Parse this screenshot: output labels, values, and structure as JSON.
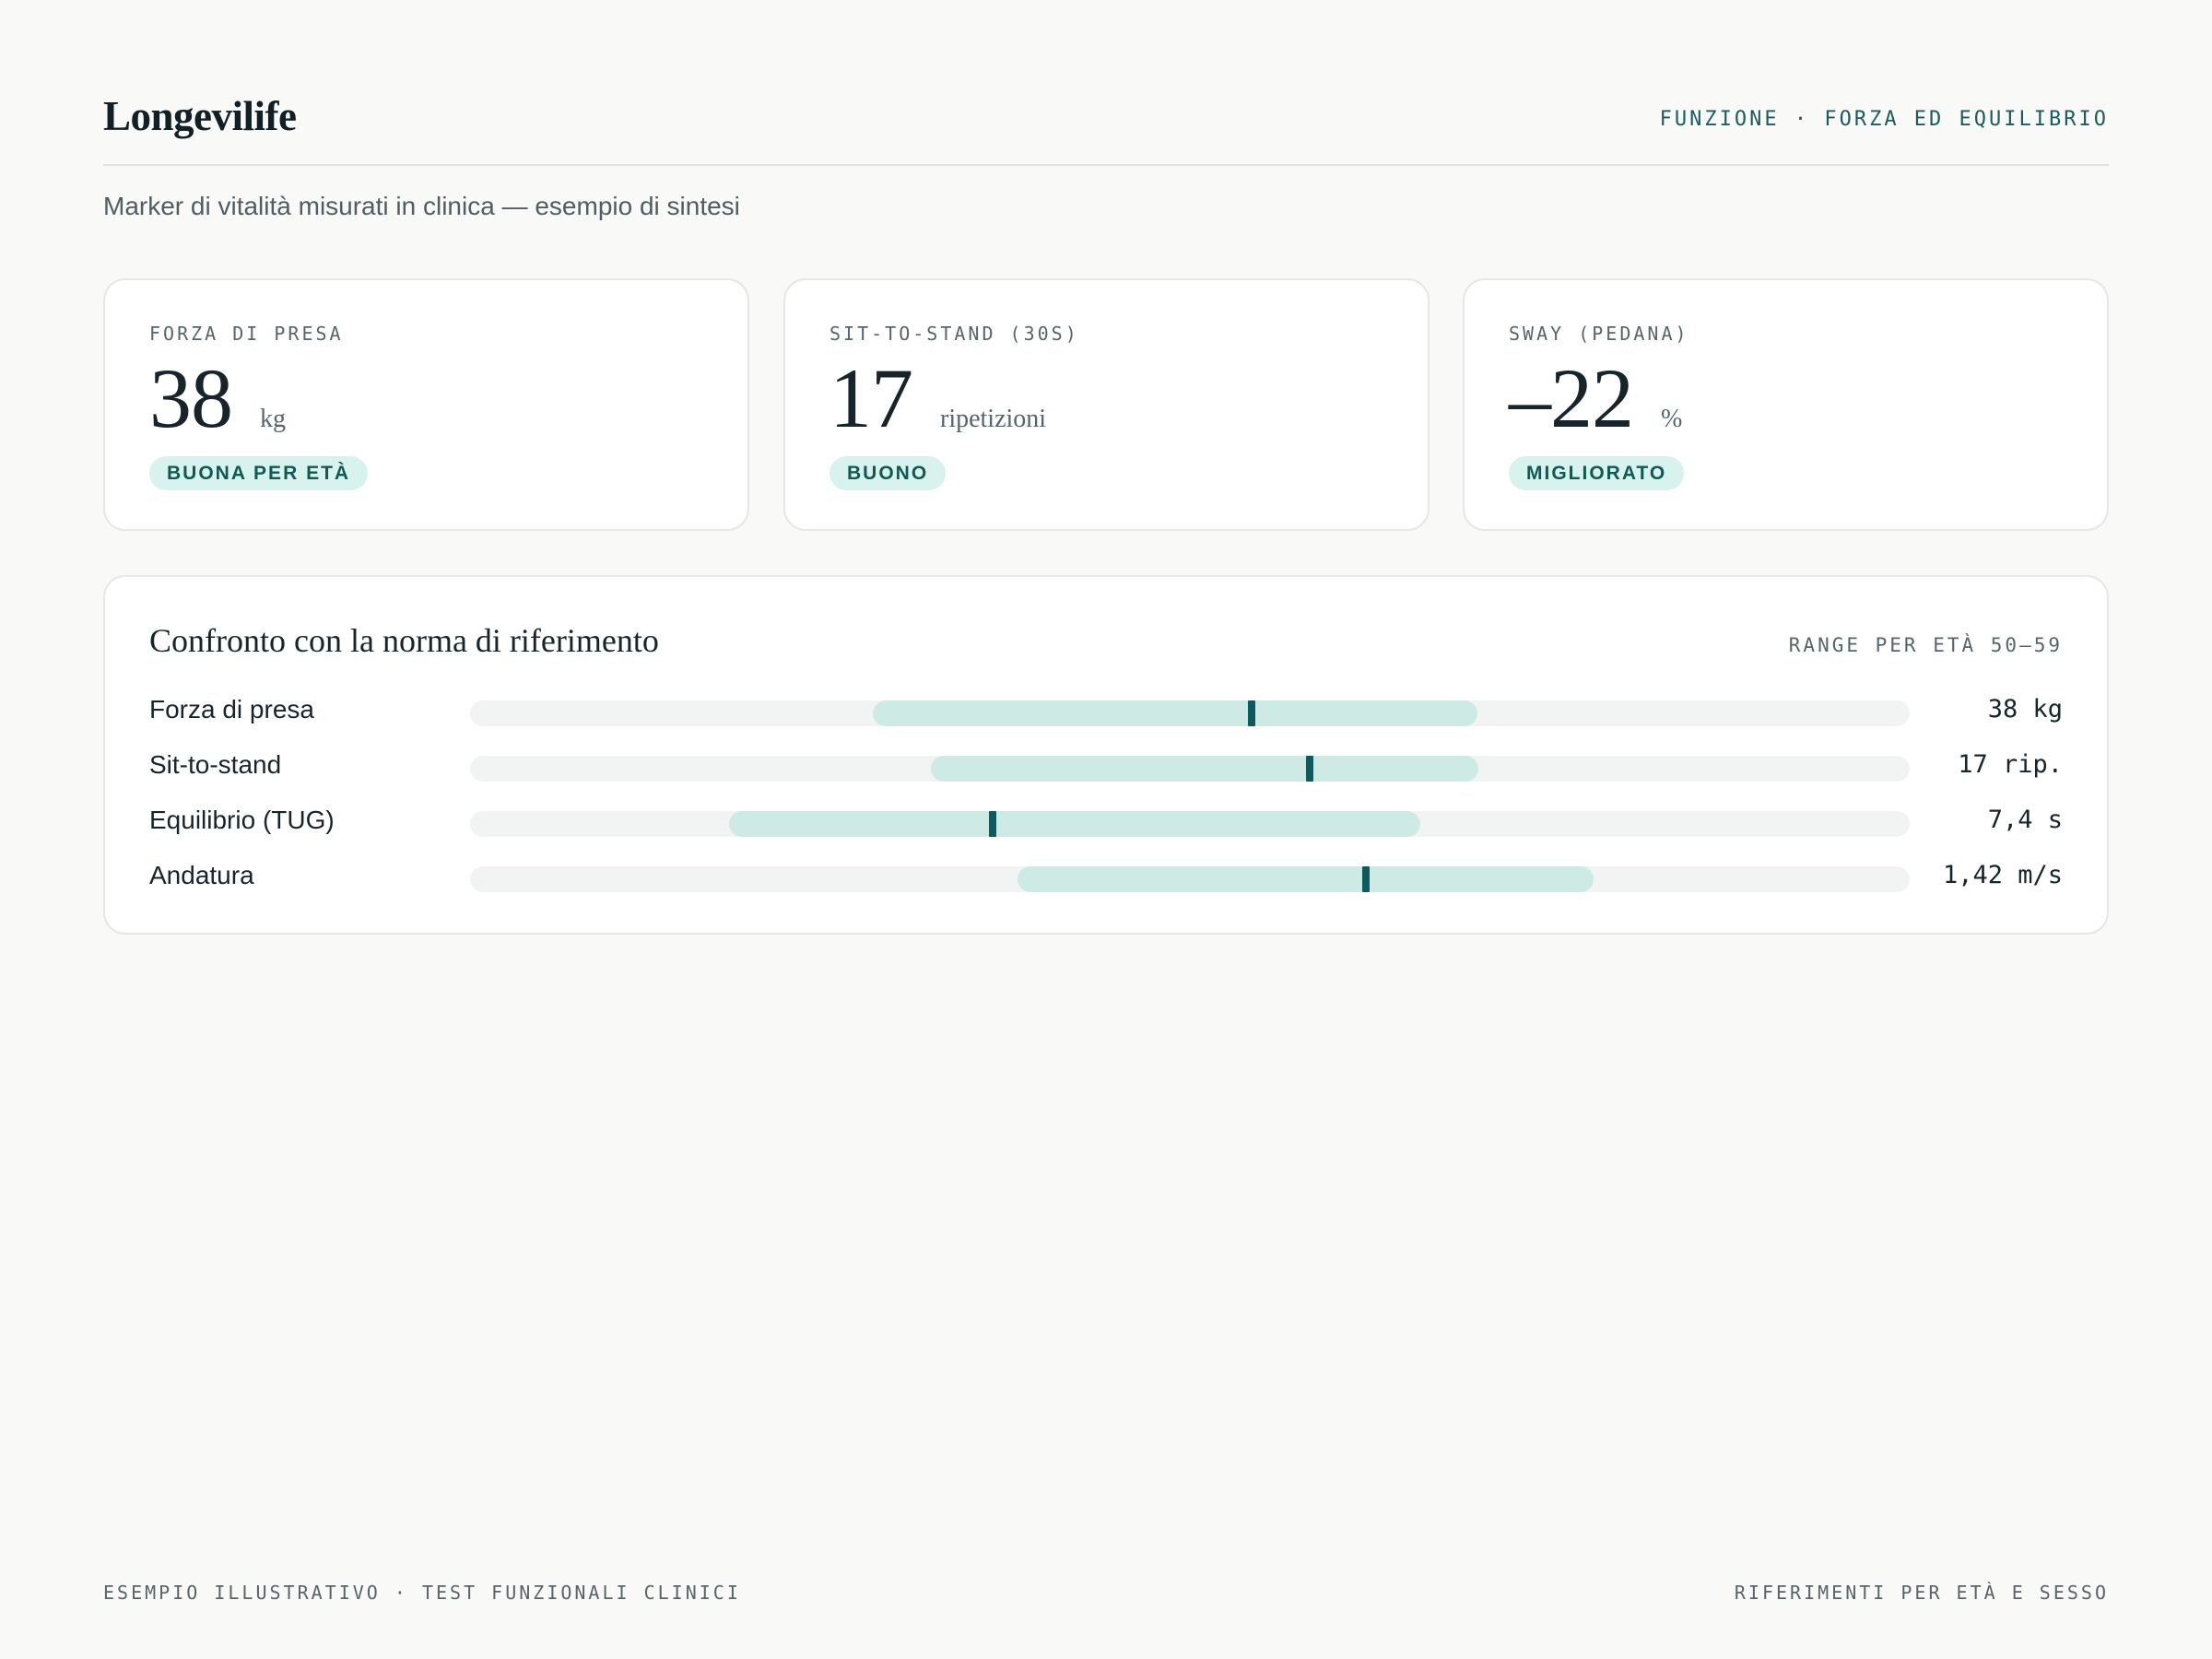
{
  "header": {
    "brand": "Longevilife",
    "section_label": "FUNZIONE · FORZA ED EQUILIBRIO"
  },
  "subtitle": "Marker di vitalità misurati in clinica — esempio di sintesi",
  "cards": [
    {
      "label": "FORZA DI PRESA",
      "value": "38",
      "unit": "kg",
      "badge": "BUONA PER ETÀ"
    },
    {
      "label": "SIT-TO-STAND (30S)",
      "value": "17",
      "unit": "ripetizioni",
      "badge": "BUONO"
    },
    {
      "label": "SWAY (PEDANA)",
      "value": "–22",
      "unit": "%",
      "badge": "MIGLIORATO"
    }
  ],
  "comparison": {
    "title": "Confronto con la norma di riferimento",
    "range_label": "RANGE PER ETÀ 50–59",
    "rows": [
      {
        "label": "Forza di presa",
        "value_text": "38 kg",
        "range_start": 0.28,
        "range_end": 0.7,
        "marker": 0.543
      },
      {
        "label": "Sit-to-stand",
        "value_text": "17 rip.",
        "range_start": 0.32,
        "range_end": 0.7,
        "marker": 0.583
      },
      {
        "label": "Equilibrio (TUG)",
        "value_text": "7,4 s",
        "range_start": 0.18,
        "range_end": 0.66,
        "marker": 0.363
      },
      {
        "label": "Andatura",
        "value_text": "1,42 m/s",
        "range_start": 0.38,
        "range_end": 0.78,
        "marker": 0.622
      }
    ]
  },
  "colors": {
    "accent": "#0f5a5e",
    "range_fill": "#cdeae5",
    "badge_bg": "#d8f2ee"
  },
  "footer": {
    "left": "ESEMPIO ILLUSTRATIVO · TEST FUNZIONALI CLINICI",
    "right": "RIFERIMENTI PER ETÀ E SESSO"
  }
}
